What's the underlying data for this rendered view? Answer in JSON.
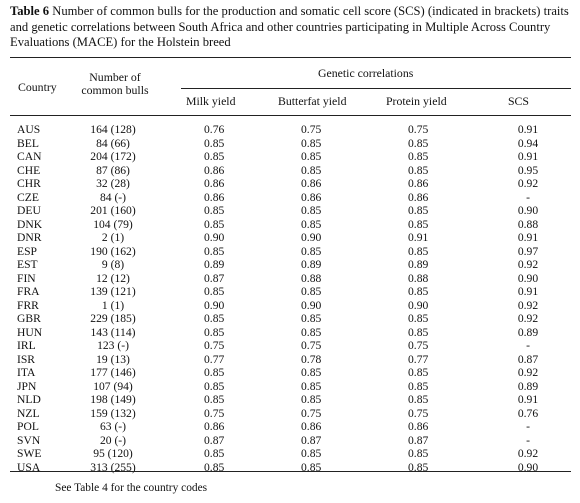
{
  "caption": {
    "label": "Table 6",
    "text": " Number of common bulls for the production and somatic cell score (SCS) (indicated in brackets) traits and genetic correlations between South Africa and other countries participating in Multiple Across Country Evaluations (MACE) for the Holstein breed"
  },
  "headers": {
    "country": "Country",
    "bulls_line1": "Number of",
    "bulls_line2": "common bulls",
    "genetic_correlations": "Genetic correlations",
    "milk": "Milk yield",
    "butterfat": "Butterfat yield",
    "protein": "Protein yield",
    "scs": "SCS"
  },
  "rows": [
    {
      "country": "AUS",
      "bulls": "164 (128)",
      "milk": "0.76",
      "butterfat": "0.75",
      "protein": "0.75",
      "scs": "0.91"
    },
    {
      "country": "BEL",
      "bulls": "84 (66)",
      "milk": "0.85",
      "butterfat": "0.85",
      "protein": "0.85",
      "scs": "0.94"
    },
    {
      "country": "CAN",
      "bulls": "204 (172)",
      "milk": "0.85",
      "butterfat": "0.85",
      "protein": "0.85",
      "scs": "0.91"
    },
    {
      "country": "CHE",
      "bulls": "87 (86)",
      "milk": "0.86",
      "butterfat": "0.85",
      "protein": "0.85",
      "scs": "0.95"
    },
    {
      "country": "CHR",
      "bulls": "32 (28)",
      "milk": "0.86",
      "butterfat": "0.86",
      "protein": "0.86",
      "scs": "0.92"
    },
    {
      "country": "CZE",
      "bulls": "84 (-)",
      "milk": "0.86",
      "butterfat": "0.86",
      "protein": "0.86",
      "scs": "-"
    },
    {
      "country": "DEU",
      "bulls": "201 (160)",
      "milk": "0.85",
      "butterfat": "0.85",
      "protein": "0.85",
      "scs": "0.90"
    },
    {
      "country": "DNK",
      "bulls": "104 (79)",
      "milk": "0.85",
      "butterfat": "0.85",
      "protein": "0.85",
      "scs": "0.88"
    },
    {
      "country": "DNR",
      "bulls": "2 (1)",
      "milk": "0.90",
      "butterfat": "0.90",
      "protein": "0.91",
      "scs": "0.91"
    },
    {
      "country": "ESP",
      "bulls": "190 (162)",
      "milk": "0.85",
      "butterfat": "0.85",
      "protein": "0.85",
      "scs": "0.97"
    },
    {
      "country": "EST",
      "bulls": "9 (8)",
      "milk": "0.89",
      "butterfat": "0.89",
      "protein": "0.89",
      "scs": "0.92"
    },
    {
      "country": "FIN",
      "bulls": "12 (12)",
      "milk": "0.87",
      "butterfat": "0.88",
      "protein": "0.88",
      "scs": "0.90"
    },
    {
      "country": "FRA",
      "bulls": "139 (121)",
      "milk": "0.85",
      "butterfat": "0.85",
      "protein": "0.85",
      "scs": "0.91"
    },
    {
      "country": "FRR",
      "bulls": "1 (1)",
      "milk": "0.90",
      "butterfat": "0.90",
      "protein": "0.90",
      "scs": "0.92"
    },
    {
      "country": "GBR",
      "bulls": "229 (185)",
      "milk": "0.85",
      "butterfat": "0.85",
      "protein": "0.85",
      "scs": "0.92"
    },
    {
      "country": "HUN",
      "bulls": "143 (114)",
      "milk": "0.85",
      "butterfat": "0.85",
      "protein": "0.85",
      "scs": "0.89"
    },
    {
      "country": "IRL",
      "bulls": "123 (-)",
      "milk": "0.75",
      "butterfat": "0.75",
      "protein": "0.75",
      "scs": "-"
    },
    {
      "country": "ISR",
      "bulls": "19 (13)",
      "milk": "0.77",
      "butterfat": "0.78",
      "protein": "0.77",
      "scs": "0.87"
    },
    {
      "country": "ITA",
      "bulls": "177 (146)",
      "milk": "0.85",
      "butterfat": "0.85",
      "protein": "0.85",
      "scs": "0.92"
    },
    {
      "country": "JPN",
      "bulls": "107 (94)",
      "milk": "0.85",
      "butterfat": "0.85",
      "protein": "0.85",
      "scs": "0.89"
    },
    {
      "country": "NLD",
      "bulls": "198 (149)",
      "milk": "0.85",
      "butterfat": "0.85",
      "protein": "0.85",
      "scs": "0.91"
    },
    {
      "country": "NZL",
      "bulls": "159 (132)",
      "milk": "0.75",
      "butterfat": "0.75",
      "protein": "0.75",
      "scs": "0.76"
    },
    {
      "country": "POL",
      "bulls": "63 (-)",
      "milk": "0.86",
      "butterfat": "0.86",
      "protein": "0.86",
      "scs": "-"
    },
    {
      "country": "SVN",
      "bulls": "20 (-)",
      "milk": "0.87",
      "butterfat": "0.87",
      "protein": "0.87",
      "scs": "-"
    },
    {
      "country": "SWE",
      "bulls": "95 (120)",
      "milk": "0.85",
      "butterfat": "0.85",
      "protein": "0.85",
      "scs": "0.92"
    },
    {
      "country": "USA",
      "bulls": "313 (255)",
      "milk": "0.85",
      "butterfat": "0.85",
      "protein": "0.85",
      "scs": "0.90"
    }
  ],
  "footnote": "See Table 4 for the country codes"
}
